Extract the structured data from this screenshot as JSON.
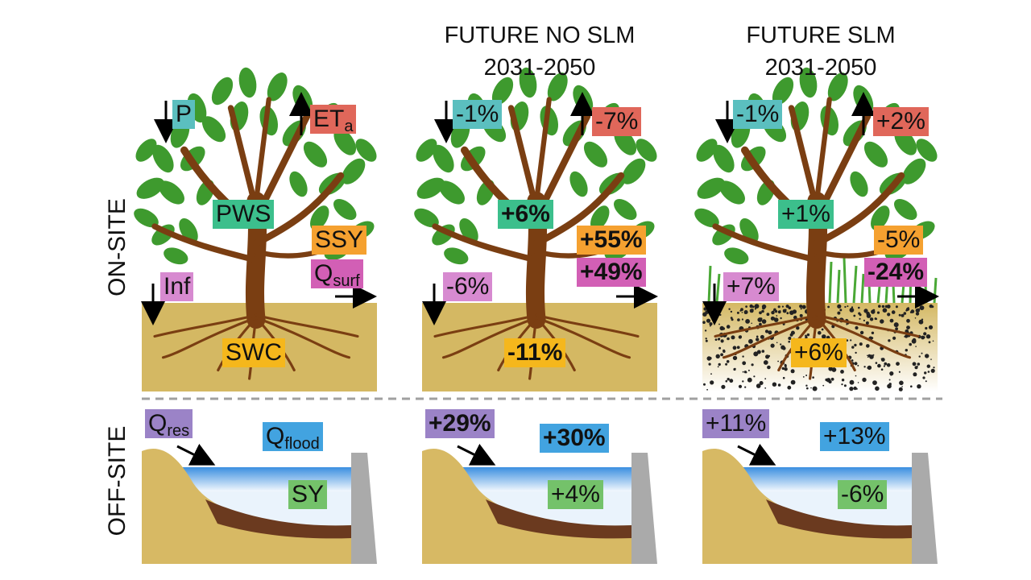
{
  "headers": {
    "no_slm": {
      "line1": "FUTURE NO SLM",
      "line2": "2031-2050"
    },
    "slm": {
      "line1": "FUTURE SLM",
      "line2": "2031-2050"
    }
  },
  "side_labels": {
    "on_site": "ON-SITE",
    "off_site": "OFF-SITE"
  },
  "panels": {
    "baseline": {
      "P": "P",
      "ETa_main": "ET",
      "ETa_sub": "a",
      "PWS": "PWS",
      "SSY": "SSY",
      "Qsurf_main": "Q",
      "Qsurf_sub": "surf",
      "Inf": "Inf",
      "SWC": "SWC",
      "Qres_main": "Q",
      "Qres_sub": "res",
      "Qflood_main": "Q",
      "Qflood_sub": "flood",
      "SY": "SY"
    },
    "no_slm": {
      "P": "-1%",
      "ETa": "-7%",
      "PWS": "+6%",
      "SSY": "+55%",
      "Qsurf": "+49%",
      "Inf": "-6%",
      "SWC": "-11%",
      "Qres": "+29%",
      "Qflood": "+30%",
      "SY": "+4%"
    },
    "slm": {
      "P": "-1%",
      "ETa": "+2%",
      "PWS": "+1%",
      "SSY": "-5%",
      "Qsurf": "-24%",
      "Inf": "+7%",
      "SWC": "+6%",
      "Qres": "+11%",
      "Qflood": "+13%",
      "SY": "-6%"
    }
  },
  "colors": {
    "soil": "#d4b863",
    "river_soil": "#d7b964",
    "water": "#3b8fe0",
    "sediment": "#6b3a1f",
    "dam": "#aaaaaa",
    "leaf": "#3e9a2e",
    "trunk": "#7a3e12",
    "divider": "#a0a0a0"
  }
}
